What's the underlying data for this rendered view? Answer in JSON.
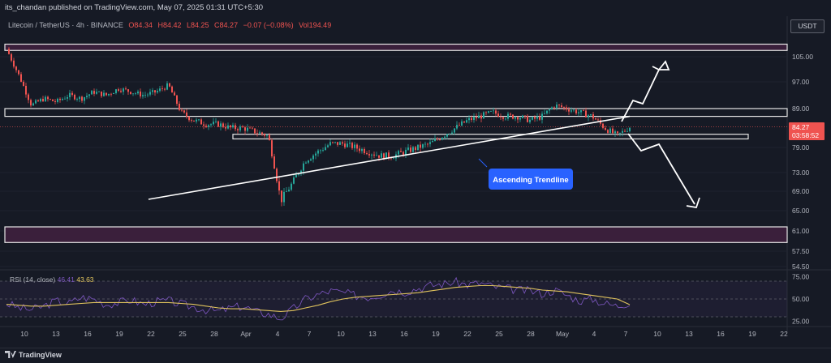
{
  "header": {
    "published": "its_chandan published on TradingView.com, May 07, 2025 01:31 UTC+5:30"
  },
  "legend": {
    "symbol": "Litecoin / TetherUS · 4h · BINANCE",
    "open": "O84.34",
    "high": "H84.42",
    "low": "L84.25",
    "close": "C84.27",
    "change": "−0.07 (−0.08%)",
    "volume": "Vol194.49"
  },
  "currency_button": "USDT",
  "price_badge": {
    "price": "84.27",
    "countdown": "03:58:52"
  },
  "annotation": {
    "trendline_label": "Ascending Trendline"
  },
  "rsi": {
    "label": "RSI (14, close)",
    "value": "46.41",
    "ma_value": "43.63"
  },
  "footer": {
    "brand": "TradingView"
  },
  "colors": {
    "background": "#161a25",
    "up": "#26a69a",
    "down": "#ef5350",
    "rsi_line": "#7e57c2",
    "rsi_ma": "#e0c35d",
    "label_blue": "#2962ff",
    "zone_fill": "#3a1f3b"
  },
  "chart_data": [
    {
      "type": "candlestick",
      "title": "Litecoin / TetherUS · 4h · BINANCE",
      "xlabel": "",
      "ylabel": "USDT",
      "ylim": [
        52,
        110
      ],
      "yticks": [
        "105.00",
        "97.00",
        "89.00",
        "79.00",
        "73.00",
        "69.00",
        "65.00",
        "61.00",
        "57.50",
        "54.50"
      ],
      "ytick_values": [
        105,
        97,
        89,
        79,
        73,
        69,
        65,
        61,
        57.5,
        54.5
      ],
      "xticks": [
        "10",
        "13",
        "16",
        "19",
        "22",
        "25",
        "28",
        "Apr",
        "4",
        "7",
        "10",
        "13",
        "16",
        "19",
        "22",
        "25",
        "28",
        "May",
        "4",
        "7",
        "10",
        "13",
        "16",
        "19",
        "22"
      ],
      "series": [
        {
          "name": "LTCUSDT close (approx)",
          "x": [
            0,
            2,
            4,
            6,
            8,
            10,
            12,
            14,
            16,
            18,
            20,
            22,
            24,
            26,
            28,
            30,
            32,
            34,
            36,
            38,
            40,
            42,
            44,
            46,
            48,
            50,
            52,
            54,
            56,
            58,
            60,
            62,
            64,
            66,
            68,
            70,
            72,
            74,
            76,
            78,
            80,
            82,
            84,
            86,
            88,
            90,
            92,
            94,
            96,
            98,
            100
          ],
          "values": [
            107.5,
            99,
            90,
            92,
            91,
            93,
            92,
            94,
            93,
            95,
            94,
            93,
            94,
            96,
            88,
            86,
            85,
            85,
            84,
            84,
            83,
            82,
            67,
            71,
            76,
            78,
            80,
            80,
            79,
            78,
            77,
            77,
            78,
            79,
            80,
            82,
            84,
            86,
            87,
            88,
            87,
            87,
            86,
            87,
            90,
            89,
            88,
            87,
            84,
            82,
            84.27
          ]
        }
      ],
      "horizontal_zones": [
        {
          "name": "upper resistance zone",
          "low": 107,
          "high": 109
        },
        {
          "name": "resistance band",
          "low": 87,
          "high": 89
        },
        {
          "name": "support band",
          "low": 81.2,
          "high": 82.4
        },
        {
          "name": "lower support zone",
          "low": 59,
          "high": 61.8
        }
      ],
      "trendline": {
        "label": "Ascending Trendline",
        "from": [
          22,
          68
        ],
        "to": [
          100,
          87
        ]
      },
      "current_price": 84.27,
      "scenarios": [
        "bullish breakout to 104",
        "bearish breakdown to 66"
      ]
    },
    {
      "type": "line",
      "title": "RSI (14, close)",
      "ylim": [
        20,
        80
      ],
      "yticks": [
        "75.00",
        "50.00",
        "25.00"
      ],
      "ytick_values": [
        75,
        50,
        25
      ],
      "levels": [
        70,
        50,
        30
      ],
      "series": [
        {
          "name": "RSI",
          "values": [
            45,
            40,
            38,
            42,
            48,
            45,
            52,
            50,
            44,
            46,
            49,
            44,
            47,
            48,
            44,
            41,
            38,
            36,
            40,
            42,
            36,
            33,
            28,
            39,
            50,
            55,
            59,
            57,
            54,
            52,
            55,
            60,
            58,
            62,
            65,
            67,
            69,
            66,
            68,
            64,
            62,
            60,
            59,
            56,
            60,
            54,
            48,
            50,
            45,
            42,
            46.41
          ]
        },
        {
          "name": "RSI MA",
          "values": [
            44,
            43,
            42,
            42,
            43,
            44,
            45,
            46,
            46,
            46,
            46,
            46,
            46,
            46,
            45,
            44,
            42,
            40,
            39,
            39,
            38,
            37,
            36,
            37,
            40,
            43,
            47,
            50,
            52,
            53,
            54,
            55,
            56,
            57,
            59,
            61,
            63,
            64,
            65,
            65,
            64,
            63,
            62,
            60,
            59,
            58,
            56,
            54,
            52,
            50,
            43.63
          ]
        }
      ]
    }
  ]
}
